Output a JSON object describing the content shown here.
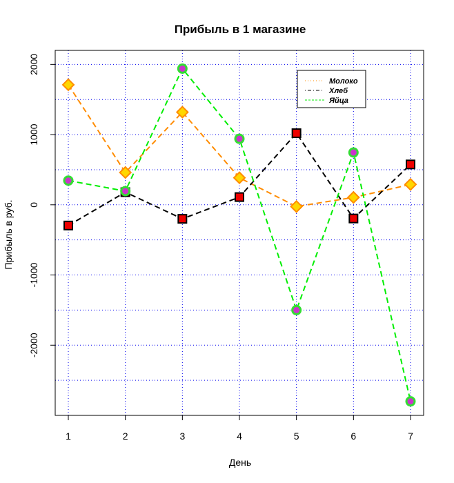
{
  "chart_data": {
    "type": "line",
    "title": "Прибыль в 1 магазине",
    "xlabel": "День",
    "ylabel": "Прибыль в руб.",
    "x": [
      1,
      2,
      3,
      4,
      5,
      6,
      7
    ],
    "xlim": [
      0.77,
      7.23
    ],
    "ylim": [
      -3000,
      2200
    ],
    "x_ticks": [
      "1",
      "2",
      "3",
      "4",
      "5",
      "6",
      "7"
    ],
    "y_ticks": [
      -2000,
      -1000,
      0,
      1000,
      2000
    ],
    "y_tick_labels": [
      "-2000",
      "-1000",
      "0",
      "1000",
      "2000"
    ],
    "grid": true,
    "grid_color": "#0000ee",
    "legend_position": "top-right",
    "series": [
      {
        "name": "Молоко",
        "values": [
          1710,
          460,
          1320,
          385,
          -25,
          105,
          290
        ],
        "line_color": "#ff8c00",
        "marker": "diamond",
        "marker_fill": "#ffd700",
        "marker_stroke": "#ff8c00",
        "legend_style": "dotted"
      },
      {
        "name": "Хлеб",
        "values": [
          -295,
          180,
          -200,
          110,
          1020,
          -195,
          575
        ],
        "line_color": "#000000",
        "marker": "square",
        "marker_fill": "#ee0000",
        "marker_stroke": "#000000",
        "legend_style": "dotdash"
      },
      {
        "name": "Яйца",
        "values": [
          345,
          195,
          1940,
          940,
          -1500,
          745,
          -2800
        ],
        "line_color": "#00ee00",
        "marker": "circle",
        "marker_fill": "#cc33cc",
        "marker_stroke": "#33dd33",
        "legend_style": "dashed"
      }
    ]
  }
}
